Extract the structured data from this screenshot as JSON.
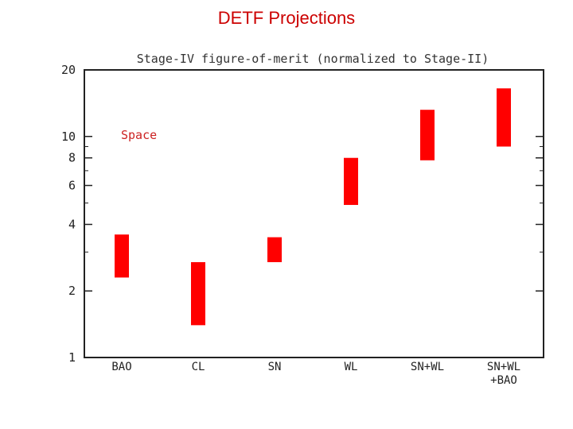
{
  "slide_title": "DETF Projections",
  "chart_data": {
    "type": "bar",
    "title": "Stage-IV figure-of-merit (normalized to Stage-II)",
    "annotation": "Space",
    "scale": "log",
    "ylim": [
      1,
      20
    ],
    "yticks": [
      {
        "value": 1,
        "label": "1"
      },
      {
        "value": 2,
        "label": "2"
      },
      {
        "value": 4,
        "label": "4"
      },
      {
        "value": 6,
        "label": "6"
      },
      {
        "value": 8,
        "label": "8"
      },
      {
        "value": 10,
        "label": "10"
      },
      {
        "value": 20,
        "label": "20"
      }
    ],
    "categories": [
      {
        "label": "BAO",
        "label2": ""
      },
      {
        "label": "CL",
        "label2": ""
      },
      {
        "label": "SN",
        "label2": ""
      },
      {
        "label": "WL",
        "label2": ""
      },
      {
        "label": "SN+WL",
        "label2": ""
      },
      {
        "label": "SN+WL",
        "label2": "+BAO"
      }
    ],
    "ranges": [
      [
        2.3,
        3.6
      ],
      [
        1.4,
        2.7
      ],
      [
        2.7,
        3.5
      ],
      [
        4.9,
        8.0
      ],
      [
        7.8,
        13.2
      ],
      [
        9.0,
        16.5
      ]
    ],
    "bar_color": "#ff0000",
    "title_color": "#333333",
    "annotation_color": "#cc2222"
  }
}
